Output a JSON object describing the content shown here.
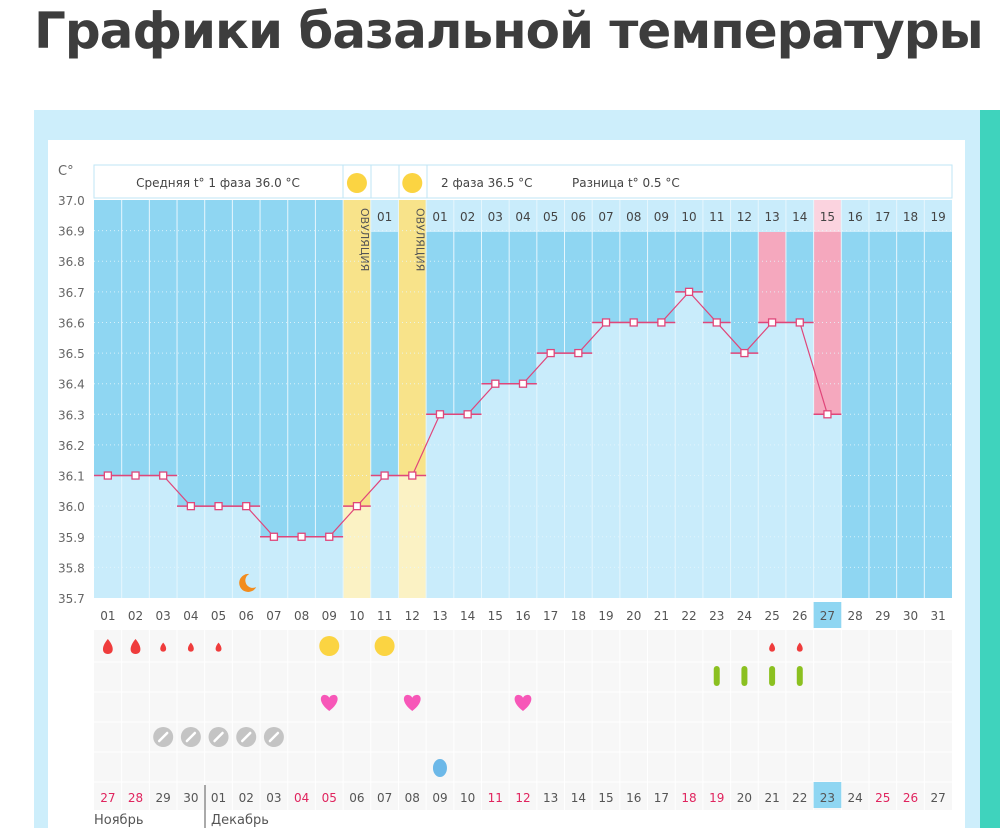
{
  "page_title": "Графики базальной температуры",
  "chart_data": {
    "type": "line",
    "ylabel": "C°",
    "ylim": [
      35.7,
      37.0
    ],
    "yticks": [
      "37.0",
      "36.9",
      "36.8",
      "36.7",
      "36.6",
      "36.5",
      "36.4",
      "36.3",
      "36.2",
      "36.1",
      "36.0",
      "35.9",
      "35.8",
      "35.7"
    ],
    "cycle_days": [
      "01",
      "02",
      "03",
      "04",
      "05",
      "06",
      "07",
      "08",
      "09",
      "10",
      "11",
      "12",
      "13",
      "14",
      "15",
      "16",
      "17",
      "18",
      "19",
      "20",
      "21",
      "22",
      "23",
      "24",
      "25",
      "26",
      "27",
      "28",
      "29",
      "30",
      "31"
    ],
    "temperatures": [
      36.1,
      36.1,
      36.1,
      36.0,
      36.0,
      36.0,
      35.9,
      35.9,
      35.9,
      36.0,
      36.1,
      36.1,
      36.3,
      36.3,
      36.4,
      36.4,
      36.5,
      36.5,
      36.6,
      36.6,
      36.6,
      36.7,
      36.6,
      36.5,
      36.6,
      36.6,
      36.3,
      null,
      null,
      null,
      null
    ],
    "header": {
      "phase1": "Средняя t° 1 фаза 36.0 °C",
      "phase2": "2 фаза 36.5 °C",
      "difference": "Разница t° 0.5 °C"
    },
    "ovulation_label": "ОВУЛЯЦИЯ",
    "ovulation_days": [
      10,
      12
    ],
    "phase_day_labels": [
      "",
      "",
      "",
      "",
      "",
      "",
      "",
      "",
      "",
      "ОВУЛЯЦИЯ",
      "01",
      "ОВУЛЯЦИЯ",
      "01",
      "02",
      "03",
      "04",
      "05",
      "06",
      "07",
      "08",
      "09",
      "10",
      "11",
      "12",
      "13",
      "14",
      "15",
      "16",
      "17",
      "18",
      "19"
    ],
    "highlighted_phase_days": [
      25,
      27
    ],
    "current_day": 27,
    "moon_day": 6,
    "calendar_dates": [
      "27",
      "28",
      "29",
      "30",
      "01",
      "02",
      "03",
      "04",
      "05",
      "06",
      "07",
      "08",
      "09",
      "10",
      "11",
      "12",
      "13",
      "14",
      "15",
      "16",
      "17",
      "18",
      "19",
      "20",
      "21",
      "22",
      "23",
      "24",
      "25",
      "26",
      "27"
    ],
    "weekend_dates_idx": [
      1,
      2,
      8,
      9,
      15,
      16,
      22,
      23,
      29,
      30
    ],
    "months": [
      "Ноябрь",
      "Декабрь"
    ],
    "markers": {
      "bleeding_heavy": [
        1,
        2
      ],
      "bleeding_light": [
        3,
        4,
        5,
        25,
        26
      ],
      "sun": [
        9,
        11
      ],
      "test_strip": [
        23,
        24,
        25,
        26
      ],
      "heart": [
        9,
        12,
        16
      ],
      "pill": [
        3,
        4,
        5,
        6,
        7
      ],
      "blue_drop": [
        13
      ]
    },
    "colors": {
      "dark_blue": "#8fd6f2",
      "light_blue": "#c9ecfb",
      "ovulation": "#f8e38a",
      "ovulation_low": "#fbf2c4",
      "pink": "#f5a8be",
      "line": "#e0467a",
      "red": "#ef3c3c",
      "sun": "#fbd442",
      "heart": "#f757b8",
      "strip": "#8bc020",
      "pill": "#c4c4c4",
      "weekend": "#e0245e",
      "teal": "#3fd3bd"
    }
  }
}
